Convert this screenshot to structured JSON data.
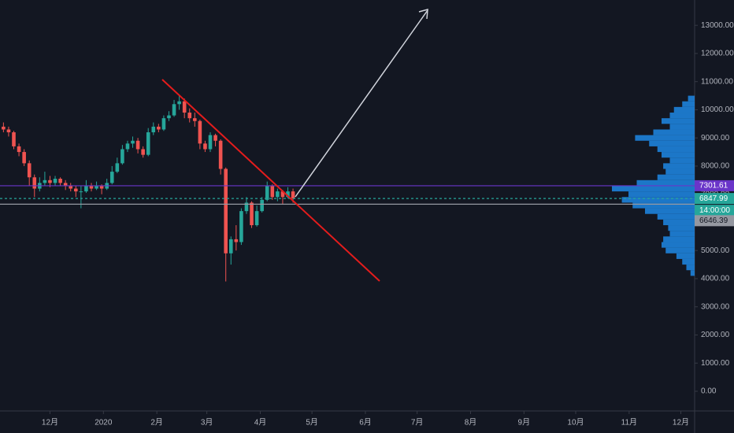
{
  "chart_data": {
    "type": "candlestick",
    "x": [
      -27,
      -24,
      -21,
      -18,
      -15,
      -12,
      -9,
      -6,
      -3,
      0,
      3,
      6,
      9,
      12,
      15,
      18,
      21,
      24,
      27,
      30,
      33,
      36,
      39,
      42,
      45,
      48,
      51,
      54,
      57,
      60,
      63,
      66,
      69,
      72,
      75,
      78,
      81,
      84,
      87,
      90,
      93,
      96,
      99,
      102,
      105,
      108,
      111,
      114,
      117,
      120,
      123,
      126,
      129,
      132,
      135,
      138,
      141
    ],
    "open": [
      9400,
      9300,
      9200,
      8700,
      8500,
      8100,
      7600,
      7200,
      7400,
      7500,
      7400,
      7550,
      7400,
      7300,
      7200,
      7100,
      7100,
      7300,
      7200,
      7300,
      7200,
      7400,
      7800,
      8100,
      8600,
      8800,
      8900,
      8600,
      8400,
      9200,
      9400,
      9300,
      9700,
      9800,
      10200,
      10300,
      9900,
      9700,
      9600,
      8800,
      8600,
      9100,
      8900,
      7900,
      4900,
      5400,
      5300,
      6400,
      6700,
      5900,
      6400,
      6800,
      7300,
      6900,
      7100,
      6900,
      7100
    ],
    "high": [
      9550,
      9400,
      9250,
      8800,
      8600,
      8200,
      7700,
      7600,
      7800,
      7650,
      7650,
      7600,
      7500,
      7400,
      7300,
      7300,
      7500,
      7400,
      7450,
      7350,
      7550,
      8000,
      8300,
      8750,
      8900,
      9050,
      9000,
      8700,
      9350,
      9550,
      9500,
      9800,
      9950,
      10350,
      10500,
      10400,
      10050,
      9900,
      9650,
      8900,
      9200,
      9150,
      8950,
      7950,
      5500,
      5900,
      6500,
      6900,
      6750,
      6600,
      6900,
      7450,
      7350,
      7200,
      7150,
      7250,
      7200
    ],
    "low": [
      9200,
      9050,
      8600,
      8350,
      8000,
      7300,
      6900,
      7100,
      7300,
      7250,
      7300,
      7300,
      7150,
      7100,
      6900,
      6500,
      7050,
      7100,
      7150,
      7000,
      7150,
      7350,
      7750,
      8050,
      8500,
      8650,
      8450,
      8300,
      8350,
      9100,
      9200,
      9250,
      9600,
      9750,
      10000,
      9700,
      9550,
      9400,
      8600,
      8500,
      8500,
      8700,
      7700,
      3900,
      4500,
      5000,
      5200,
      6300,
      5800,
      5850,
      6350,
      6750,
      6800,
      6750,
      6650,
      6850,
      6700
    ],
    "close": [
      9300,
      9200,
      8700,
      8500,
      8100,
      7600,
      7200,
      7400,
      7500,
      7400,
      7550,
      7400,
      7300,
      7200,
      7100,
      7100,
      7300,
      7200,
      7300,
      7200,
      7400,
      7800,
      8100,
      8600,
      8800,
      8900,
      8600,
      8400,
      9200,
      9400,
      9300,
      9700,
      9800,
      10200,
      10300,
      9900,
      9700,
      9600,
      8800,
      8600,
      9100,
      8900,
      7900,
      4900,
      5400,
      5300,
      6400,
      6700,
      5900,
      6400,
      6800,
      7300,
      6900,
      7100,
      6900,
      7100,
      6850
    ],
    "up_color": "#26a69a",
    "down_color": "#ef5350",
    "xlim": [
      -29,
      374
    ],
    "xticks": [
      {
        "value": 0,
        "label": "12月"
      },
      {
        "value": 31,
        "label": "2020"
      },
      {
        "value": 62,
        "label": "2月"
      },
      {
        "value": 91,
        "label": "3月"
      },
      {
        "value": 122,
        "label": "4月"
      },
      {
        "value": 152,
        "label": "5月"
      },
      {
        "value": 183,
        "label": "6月"
      },
      {
        "value": 213,
        "label": "7月"
      },
      {
        "value": 244,
        "label": "8月"
      },
      {
        "value": 275,
        "label": "9月"
      },
      {
        "value": 305,
        "label": "10月"
      },
      {
        "value": 336,
        "label": "11月"
      },
      {
        "value": 366,
        "label": "12月"
      }
    ],
    "ylim": [
      -700,
      13900
    ],
    "yticks": [
      {
        "value": 0,
        "label": "0.00"
      },
      {
        "value": 1000,
        "label": "1000.00"
      },
      {
        "value": 2000,
        "label": "2000.00"
      },
      {
        "value": 3000,
        "label": "3000.00"
      },
      {
        "value": 4000,
        "label": "4000.00"
      },
      {
        "value": 5000,
        "label": "5000.00"
      },
      {
        "value": 6000,
        "label": "6000.00"
      },
      {
        "value": 7000,
        "label": "7000.00"
      },
      {
        "value": 8000,
        "label": "8000.00"
      },
      {
        "value": 9000,
        "label": "9000.00"
      },
      {
        "value": 10000,
        "label": "10000.00"
      },
      {
        "value": 11000,
        "label": "11000.00"
      },
      {
        "value": 12000,
        "label": "12000.00"
      },
      {
        "value": 13000,
        "label": "13000.00"
      }
    ],
    "volume_profile": {
      "color": "#1e88e5",
      "prices": [
        4200,
        4400,
        4600,
        4800,
        5000,
        5200,
        5400,
        5600,
        5800,
        6000,
        6200,
        6400,
        6600,
        6800,
        7000,
        7200,
        7400,
        7600,
        7800,
        8000,
        8200,
        8400,
        8600,
        8800,
        9000,
        9200,
        9400,
        9600,
        9800,
        10000,
        10200,
        10400
      ],
      "values": [
        5,
        10,
        15,
        22,
        35,
        40,
        38,
        30,
        32,
        38,
        45,
        60,
        75,
        88,
        80,
        100,
        70,
        45,
        35,
        38,
        30,
        40,
        45,
        55,
        72,
        50,
        30,
        40,
        30,
        25,
        15,
        8
      ]
    },
    "price_lines": [
      {
        "value": 7301.61,
        "color": "#6a35c9"
      },
      {
        "value": 6847.99,
        "color": "#26a69a"
      },
      {
        "value": 6646.39,
        "color": "#9598a1"
      }
    ],
    "countdown": "14:00:00"
  }
}
